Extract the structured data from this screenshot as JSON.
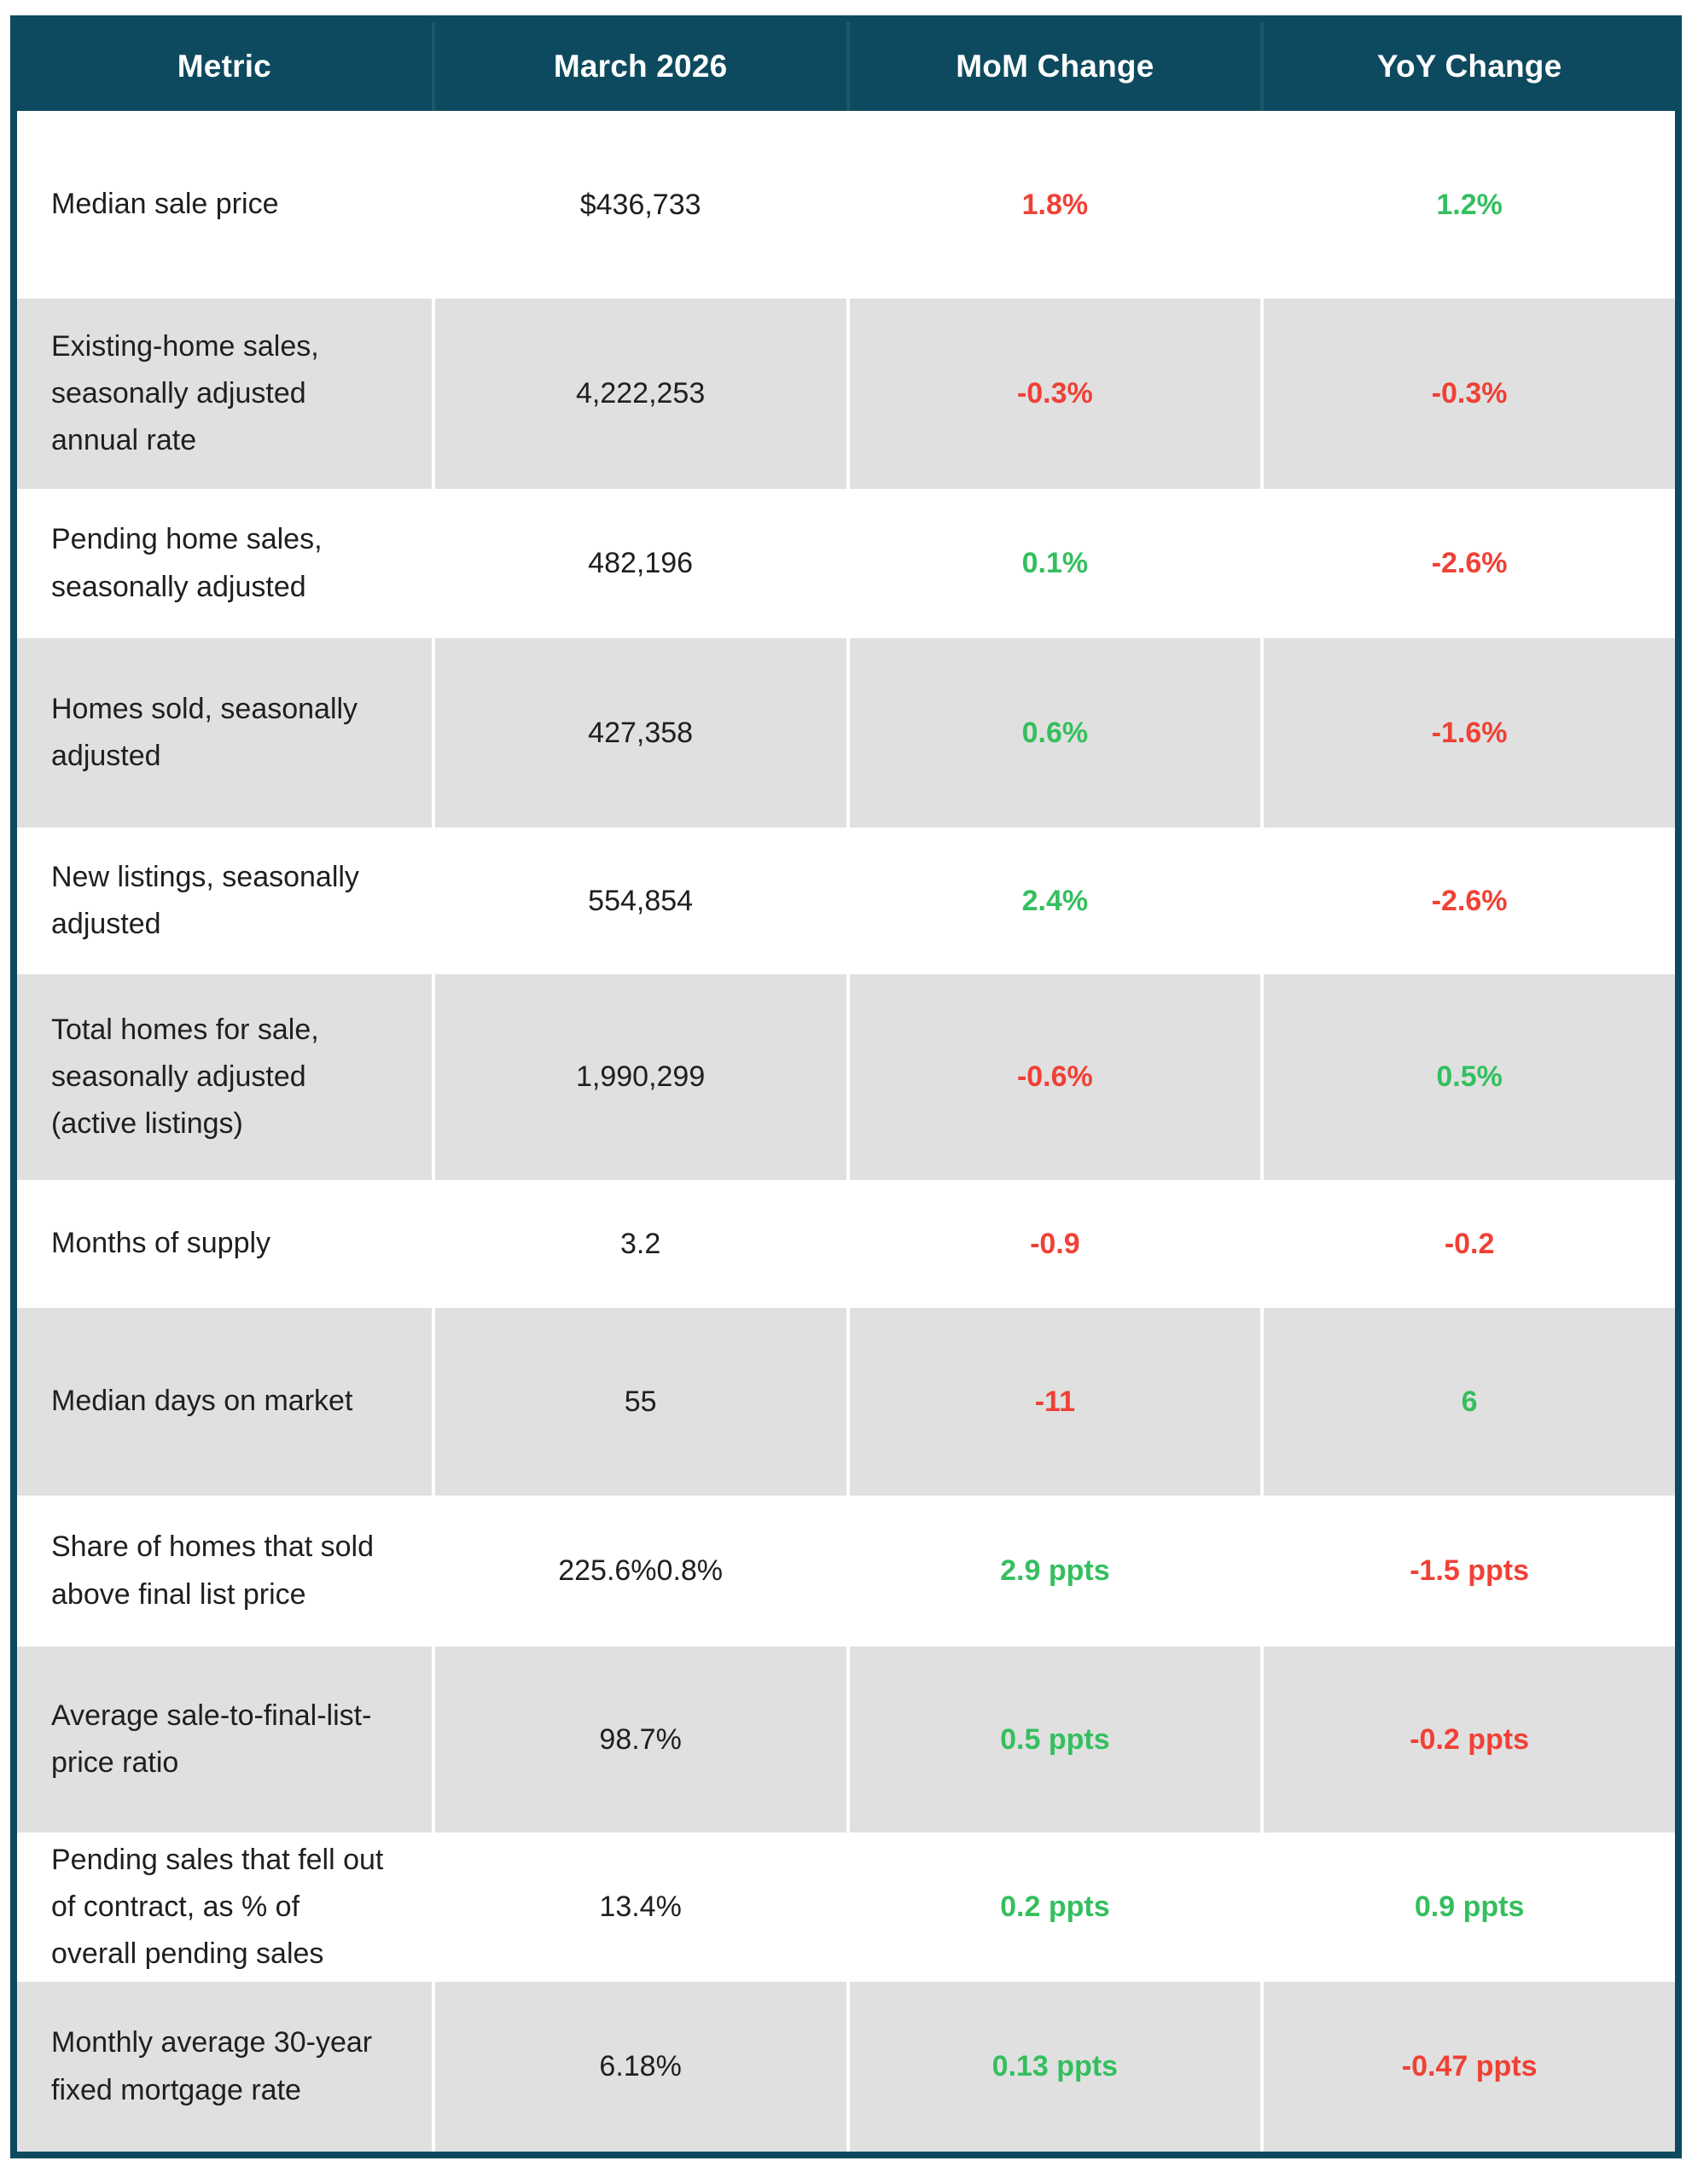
{
  "chart_data": {
    "type": "table",
    "columns": [
      "Metric",
      "March 2026",
      "MoM Change",
      "YoY Change"
    ],
    "rows": [
      {
        "metric": "Median sale price",
        "value": "$436,733",
        "mom": "1.8%",
        "mom_color": "red",
        "yoy": "1.2%",
        "yoy_color": "green"
      },
      {
        "metric": "Existing-home sales, seasonally adjusted annual rate",
        "value": "4,222,253",
        "mom": "-0.3%",
        "mom_color": "red",
        "yoy": "-0.3%",
        "yoy_color": "red"
      },
      {
        "metric": "Pending home sales, seasonally adjusted",
        "value": "482,196",
        "mom": "0.1%",
        "mom_color": "green",
        "yoy": "-2.6%",
        "yoy_color": "red"
      },
      {
        "metric": "Homes sold, seasonally adjusted",
        "value": "427,358",
        "mom": "0.6%",
        "mom_color": "green",
        "yoy": "-1.6%",
        "yoy_color": "red"
      },
      {
        "metric": "New listings, seasonally adjusted",
        "value": "554,854",
        "mom": "2.4%",
        "mom_color": "green",
        "yoy": "-2.6%",
        "yoy_color": "red"
      },
      {
        "metric": "Total homes for sale, seasonally adjusted (active listings)",
        "value": "1,990,299",
        "mom": "-0.6%",
        "mom_color": "red",
        "yoy": "0.5%",
        "yoy_color": "green"
      },
      {
        "metric": "Months of supply",
        "value": "3.2",
        "mom": "-0.9",
        "mom_color": "red",
        "yoy": "-0.2",
        "yoy_color": "red"
      },
      {
        "metric": "Median days on market",
        "value": "55",
        "mom": "-11",
        "mom_color": "red",
        "yoy": "6",
        "yoy_color": "green"
      },
      {
        "metric": "Share of homes that sold above final list price",
        "value": "225.6%0.8%",
        "mom": "2.9 ppts",
        "mom_color": "green",
        "yoy": "-1.5 ppts",
        "yoy_color": "red"
      },
      {
        "metric": "Average sale-to-final-list-price ratio",
        "value": "98.7%",
        "mom": "0.5 ppts",
        "mom_color": "green",
        "yoy": "-0.2 ppts",
        "yoy_color": "red"
      },
      {
        "metric": "Pending sales that fell out of contract, as % of overall pending sales",
        "value": "13.4%",
        "mom": "0.2 ppts",
        "mom_color": "green",
        "yoy": "0.9 ppts",
        "yoy_color": "green"
      },
      {
        "metric": "Monthly average 30-year fixed mortgage rate",
        "value": "6.18%",
        "mom": "0.13 ppts",
        "mom_color": "green",
        "yoy": "-0.47 ppts",
        "yoy_color": "red"
      }
    ],
    "legend_position": "none",
    "grid": "alternating-row-shading"
  },
  "colors": {
    "header_bg": "#0d4a5f",
    "header_text": "#ffffff",
    "row_alt_bg": "#e0e0e0",
    "positive": "#34bf5e",
    "negative": "#ef4136",
    "text": "#1f1f1f"
  }
}
